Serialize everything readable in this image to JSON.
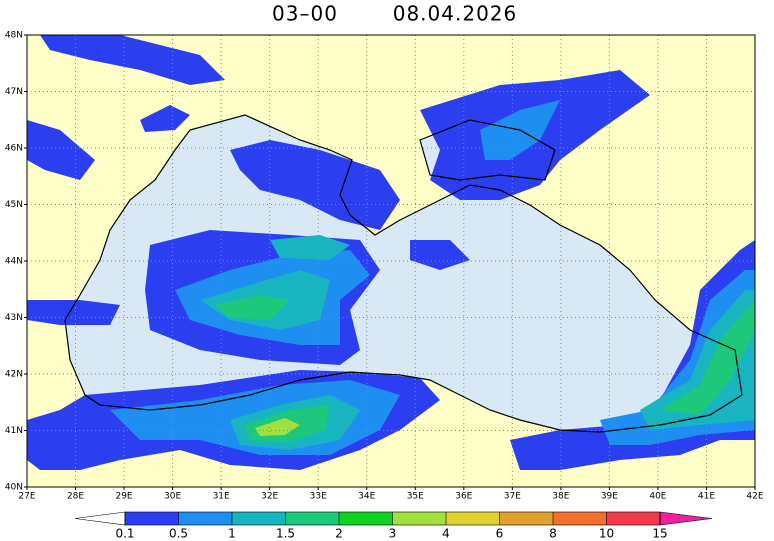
{
  "header": {
    "time": "03–00",
    "date": "08.04.2026"
  },
  "map": {
    "lon_labels": [
      "27E",
      "28E",
      "29E",
      "30E",
      "31E",
      "32E",
      "33E",
      "34E",
      "35E",
      "36E",
      "37E",
      "38E",
      "39E",
      "40E",
      "41E",
      "42E"
    ],
    "lat_labels": [
      "48N",
      "47N",
      "46N",
      "45N",
      "44N",
      "43N",
      "42N",
      "41N",
      "40N"
    ],
    "colorbar": {
      "levels": [
        0.1,
        0.5,
        1,
        1.5,
        2,
        3,
        4,
        6,
        8,
        10,
        15
      ],
      "colors": [
        "#ffffff",
        "#2b3ff0",
        "#1e8ef0",
        "#18b4c0",
        "#1ec87a",
        "#12d020",
        "#a0e040",
        "#e0d030",
        "#e0a030",
        "#f07030",
        "#f03c48",
        "#f020a0"
      ]
    }
  }
}
